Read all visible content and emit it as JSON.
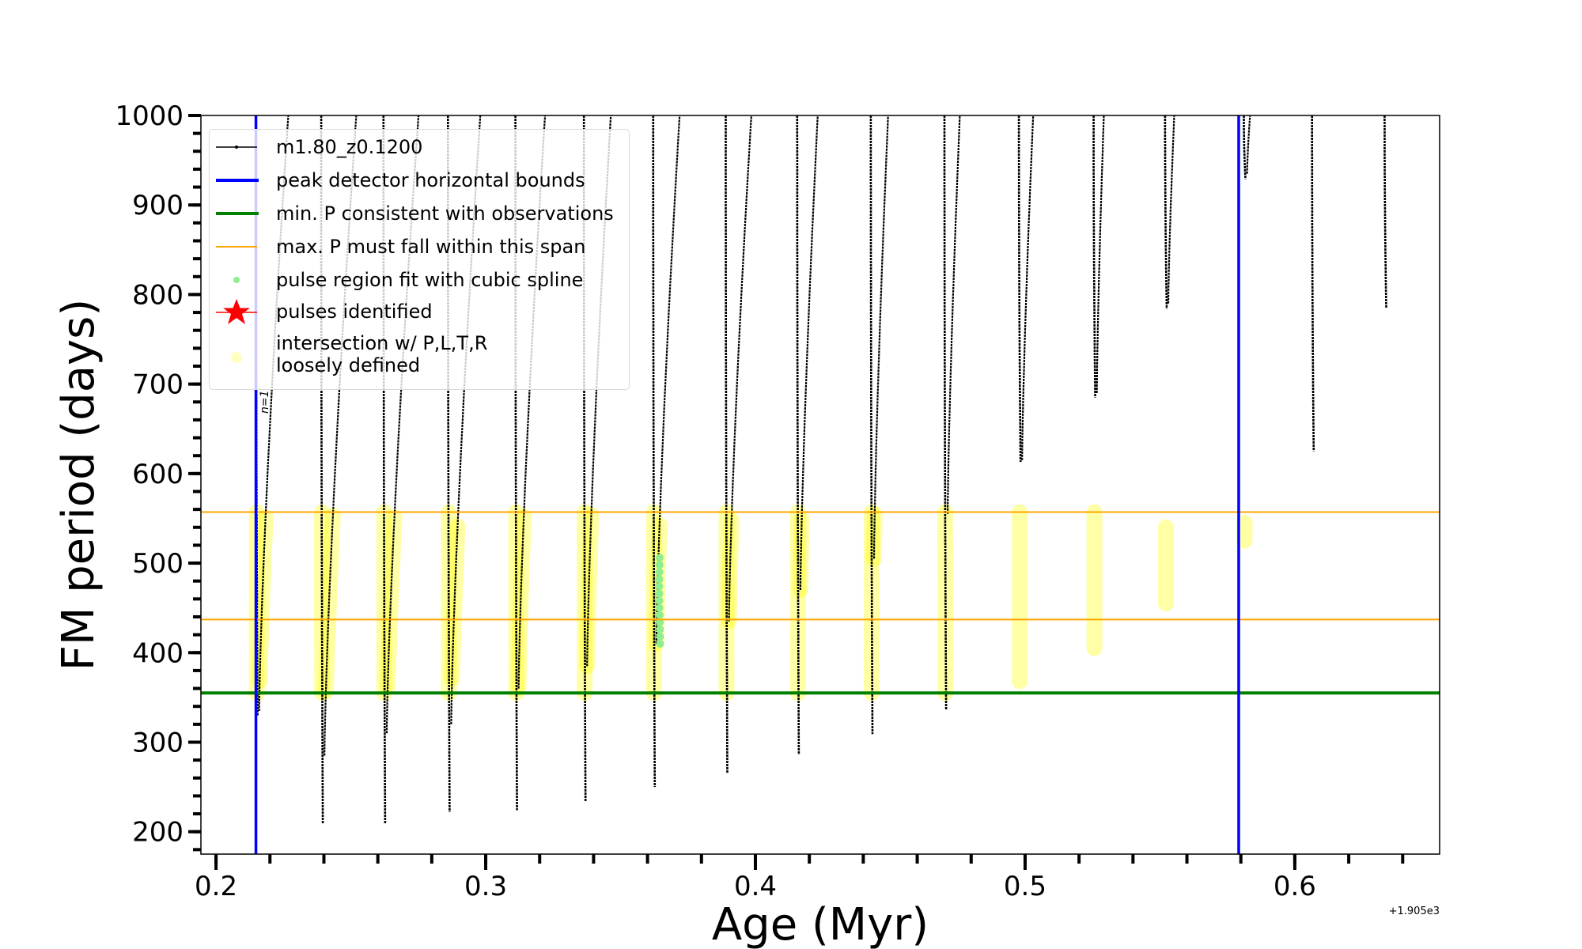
{
  "chart_data": {
    "type": "line",
    "title": "",
    "xlabel": "Age (Myr)",
    "ylabel": "FM period (days)",
    "x_offset_text": "+1.905e3",
    "xlim": [
      0.1944,
      0.6537
    ],
    "ylim": [
      175,
      1000
    ],
    "grid": false,
    "xticks": [
      0.2,
      0.3,
      0.4,
      0.5,
      0.6
    ],
    "xtick_labels": [
      "0.2",
      "0.3",
      "0.4",
      "0.5",
      "0.6"
    ],
    "x_minor_step": 0.02,
    "yticks": [
      200,
      300,
      400,
      500,
      600,
      700,
      800,
      900,
      1000
    ],
    "ytick_labels": [
      "200",
      "300",
      "400",
      "500",
      "600",
      "700",
      "800",
      "900",
      "1000"
    ],
    "y_minor_step": 20,
    "colors": {
      "track": "#000000",
      "bounds": "#0000ff",
      "min_p": "#008000",
      "max_span": "#ffa500",
      "spline": "#90ee90",
      "pulse": "#ff0000",
      "intersection": "#ffff00"
    },
    "legend": {
      "placement": "upper-left",
      "entries": [
        {
          "label": "m1.80_z0.1200",
          "kind": "track"
        },
        {
          "label": "peak detector horizontal bounds",
          "kind": "bounds"
        },
        {
          "label": "min. P consistent with observations",
          "kind": "min_p"
        },
        {
          "label": "max. P must fall within this span",
          "kind": "max_span"
        },
        {
          "label": "pulse region fit with cubic spline",
          "kind": "spline"
        },
        {
          "label": "pulses identified",
          "kind": "pulse"
        },
        {
          "label": "intersection w/ P,L,T,R",
          "label2": "loosely defined",
          "kind": "intersection"
        }
      ]
    },
    "vlines_bounds": [
      0.2148,
      0.5792
    ],
    "hline_min_p": 355,
    "hlines_max_span": [
      437,
      557
    ],
    "series": {
      "name": "m1.80_z0.1200",
      "pulses": [
        {
          "age": 0.2148,
          "min_period": 330,
          "rise_start": 335,
          "rise_top_age": 0.2268,
          "yellow": [
            355,
            557
          ]
        },
        {
          "age": 0.239,
          "min_period": 209,
          "rise_start": 285,
          "rise_top_age": 0.252,
          "yellow": [
            355,
            557
          ]
        },
        {
          "age": 0.2621,
          "min_period": 209,
          "rise_start": 310,
          "rise_top_age": 0.2751,
          "yellow": [
            355,
            557
          ]
        },
        {
          "age": 0.286,
          "min_period": 222,
          "rise_start": 320,
          "rise_top_age": 0.298,
          "yellow": [
            355,
            557
          ]
        },
        {
          "age": 0.311,
          "min_period": 224,
          "rise_start": 360,
          "rise_top_age": 0.322,
          "yellow": [
            355,
            557
          ]
        },
        {
          "age": 0.3364,
          "min_period": 234,
          "rise_start": 385,
          "rise_top_age": 0.3464,
          "yellow": [
            355,
            557
          ]
        },
        {
          "age": 0.3621,
          "min_period": 250,
          "rise_start": 410,
          "rise_top_age": 0.3719,
          "yellow": [
            355,
            557
          ]
        },
        {
          "age": 0.389,
          "min_period": 265,
          "rise_start": 435,
          "rise_top_age": 0.3985,
          "yellow": [
            355,
            557
          ]
        },
        {
          "age": 0.4155,
          "min_period": 286,
          "rise_start": 470,
          "rise_top_age": 0.4231,
          "yellow": [
            355,
            557
          ]
        },
        {
          "age": 0.4428,
          "min_period": 309,
          "rise_start": 505,
          "rise_top_age": 0.4492,
          "yellow": [
            355,
            557
          ]
        },
        {
          "age": 0.4701,
          "min_period": 336,
          "rise_start": 555,
          "rise_top_age": 0.4758,
          "yellow": [
            355,
            557
          ]
        },
        {
          "age": 0.4977,
          "min_period": 613,
          "rise_start": 615,
          "rise_top_age": 0.503,
          "yellow": [
            368,
            557
          ]
        },
        {
          "age": 0.5254,
          "min_period": 685,
          "rise_start": 690,
          "rise_top_age": 0.5292,
          "yellow": [
            405,
            557
          ]
        },
        {
          "age": 0.5519,
          "min_period": 784,
          "rise_start": 790,
          "rise_top_age": 0.5553,
          "yellow": [
            455,
            540
          ]
        },
        {
          "age": 0.5811,
          "min_period": 929,
          "rise_start": 935,
          "rise_top_age": 0.5834,
          "yellow": [
            525,
            545
          ]
        },
        {
          "age": 0.6064,
          "min_period": 625,
          "rise_start": null,
          "rise_top_age": null,
          "yellow": null
        },
        {
          "age": 0.6333,
          "min_period": 785,
          "rise_start": null,
          "rise_top_age": null,
          "yellow": null
        }
      ]
    },
    "spline_fit": {
      "age": 0.3645,
      "period_range": [
        410,
        510
      ]
    },
    "annotations": [
      {
        "text": "n=1",
        "age": 0.2158,
        "period": 680
      }
    ]
  }
}
